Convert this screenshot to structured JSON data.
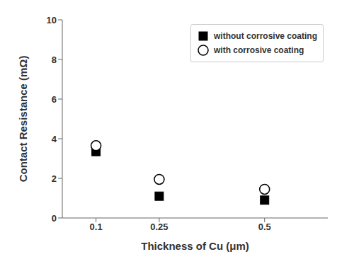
{
  "chart_data": {
    "type": "scatter",
    "x_label": "Thickness of Cu (μm)",
    "y_label": "Contact Resistance (mΩ)",
    "x": [
      0.1,
      0.25,
      0.5
    ],
    "xlim": [
      0.02,
      0.65
    ],
    "xticks": [
      0.1,
      0.25,
      0.5
    ],
    "ylim": [
      0,
      10
    ],
    "yticks": [
      0,
      2,
      4,
      6,
      8,
      10
    ],
    "series": [
      {
        "name": "without corrosive coating",
        "color": "black",
        "marker": "square",
        "values": [
          3.35,
          1.1,
          0.9
        ]
      },
      {
        "name": "with corrosive coating",
        "color": "black",
        "marker": "circle",
        "values": [
          3.65,
          1.95,
          1.45
        ]
      }
    ],
    "legend": "upper right",
    "grid": false
  }
}
